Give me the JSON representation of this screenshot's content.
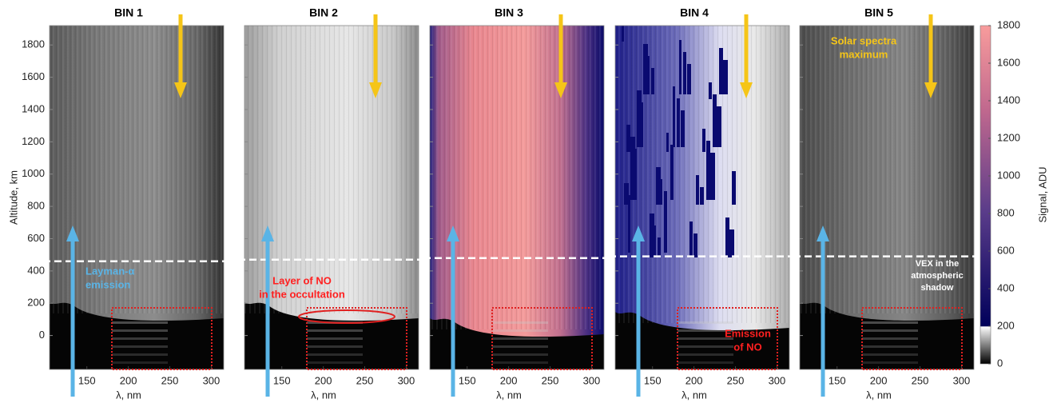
{
  "chart_data": [
    {
      "type": "heatmap",
      "title": "BIN 1",
      "xlabel": "λ, nm",
      "ylabel": "Altitude, km",
      "xlim": [
        105,
        315
      ],
      "xticks": [
        150,
        200,
        250,
        300
      ],
      "ylim": [
        -210,
        1920
      ],
      "yticks": [
        0,
        200,
        400,
        600,
        800,
        1000,
        1200,
        1400,
        1600,
        1800
      ],
      "dashed_line_altitude": 460,
      "annotations": [
        {
          "lines": [
            "Layman-α",
            "emission"
          ],
          "color": "#5ab4e6"
        }
      ]
    },
    {
      "type": "heatmap",
      "title": "BIN 2",
      "xlabel": "λ, nm",
      "xlim": [
        105,
        315
      ],
      "xticks": [
        150,
        200,
        250,
        300
      ],
      "ylim": [
        -210,
        1920
      ],
      "yticks": [
        0,
        200,
        400,
        600,
        800,
        1000,
        1200,
        1400,
        1600,
        1800
      ],
      "dashed_line_altitude": 470,
      "annotations": [
        {
          "lines": [
            "Layer of NO",
            "in the occultation"
          ],
          "color": "#ff2020"
        }
      ]
    },
    {
      "type": "heatmap",
      "title": "BIN 3",
      "xlabel": "λ, nm",
      "xlim": [
        105,
        315
      ],
      "xticks": [
        150,
        200,
        250,
        300
      ],
      "ylim": [
        -210,
        1920
      ],
      "yticks": [
        0,
        200,
        400,
        600,
        800,
        1000,
        1200,
        1400,
        1600,
        1800
      ],
      "dashed_line_altitude": 480,
      "annotations": []
    },
    {
      "type": "heatmap",
      "title": "BIN 4",
      "xlabel": "λ, nm",
      "xlim": [
        105,
        315
      ],
      "xticks": [
        150,
        200,
        250,
        300
      ],
      "ylim": [
        -210,
        1920
      ],
      "yticks": [
        0,
        200,
        400,
        600,
        800,
        1000,
        1200,
        1400,
        1600,
        1800
      ],
      "dashed_line_altitude": 490,
      "annotations": [
        {
          "lines": [
            "Emission",
            "of NO"
          ],
          "color": "#ff2020"
        }
      ]
    },
    {
      "type": "heatmap",
      "title": "BIN 5",
      "xlabel": "λ, nm",
      "xlim": [
        105,
        315
      ],
      "xticks": [
        150,
        200,
        250,
        300
      ],
      "ylim": [
        -210,
        1920
      ],
      "yticks": [
        0,
        200,
        400,
        600,
        800,
        1000,
        1200,
        1400,
        1600,
        1800
      ],
      "dashed_line_altitude": 490,
      "annotations": [
        {
          "lines": [
            "Solar spectra",
            "maximum"
          ],
          "color": "#f5c518"
        },
        {
          "lines": [
            "VEX in the",
            "atmospheric",
            "shadow"
          ],
          "color": "#ffffff"
        }
      ]
    },
    {
      "type": "colorbar",
      "label": "Signal, ADU",
      "lim": [
        0,
        1800
      ],
      "ticks": [
        0,
        200,
        400,
        600,
        800,
        1000,
        1200,
        1400,
        1600,
        1800
      ]
    }
  ]
}
